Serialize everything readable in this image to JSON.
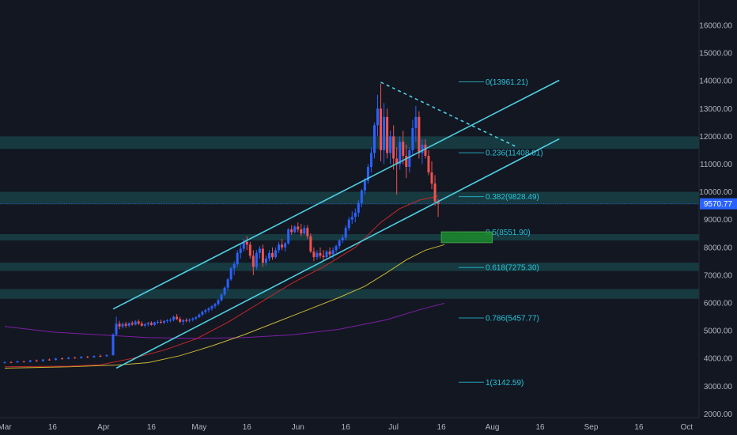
{
  "chart_data": {
    "type": "candlestick",
    "symbol_last_price": "9570.77",
    "y_axis": {
      "ylim": [
        1800,
        17200
      ],
      "ticks": [
        "2000.00",
        "3000.00",
        "4000.00",
        "5000.00",
        "6000.00",
        "7000.00",
        "8000.00",
        "9000.00",
        "10000.00",
        "11000.00",
        "12000.00",
        "13000.00",
        "14000.00",
        "15000.00",
        "16000.00"
      ],
      "tick_values": [
        2000,
        3000,
        4000,
        5000,
        6000,
        7000,
        8000,
        9000,
        10000,
        11000,
        12000,
        13000,
        14000,
        15000,
        16000
      ]
    },
    "x_axis": {
      "xlim": [
        0,
        218
      ],
      "ticks": [
        {
          "label": "Mar",
          "day": 0
        },
        {
          "label": "16",
          "day": 15
        },
        {
          "label": "Apr",
          "day": 31
        },
        {
          "label": "16",
          "day": 46
        },
        {
          "label": "May",
          "day": 61
        },
        {
          "label": "16",
          "day": 76
        },
        {
          "label": "Jun",
          "day": 92
        },
        {
          "label": "16",
          "day": 107
        },
        {
          "label": "Jul",
          "day": 122
        },
        {
          "label": "16",
          "day": 137
        },
        {
          "label": "Aug",
          "day": 153
        },
        {
          "label": "16",
          "day": 168
        },
        {
          "label": "Sep",
          "day": 184
        },
        {
          "label": "16",
          "day": 199
        },
        {
          "label": "Oct",
          "day": 214
        }
      ]
    },
    "fibonacci": [
      {
        "label": "0(13961.21)",
        "value": 13961.21
      },
      {
        "label": "0.236(11408.01)",
        "value": 11408.01
      },
      {
        "label": "0.382(9828.49)",
        "value": 9828.49
      },
      {
        "label": "0.5(8551.90)",
        "value": 8551.9
      },
      {
        "label": "0.618(7275.30)",
        "value": 7275.3
      },
      {
        "label": "0.786(5457.77)",
        "value": 5457.77
      },
      {
        "label": "1(3142.59)",
        "value": 3142.59
      }
    ],
    "zones": [
      {
        "low": 11550,
        "high": 12000
      },
      {
        "low": 9550,
        "high": 10000
      },
      {
        "low": 8250,
        "high": 8480
      },
      {
        "low": 7150,
        "high": 7450
      },
      {
        "low": 6150,
        "high": 6500
      }
    ],
    "target_box": {
      "x_start": 137,
      "x_end": 153,
      "low": 8170,
      "high": 8560
    },
    "channel_upper": [
      [
        34,
        5780
      ],
      [
        174,
        14020
      ]
    ],
    "channel_lower": [
      [
        35,
        3650
      ],
      [
        174,
        11910
      ]
    ],
    "downtrend": [
      [
        118,
        13950
      ],
      [
        161,
        11600
      ]
    ],
    "candles": [
      [
        0,
        3850,
        3890,
        3810,
        3870
      ],
      [
        2,
        3870,
        3900,
        3830,
        3860
      ],
      [
        4,
        3860,
        3920,
        3840,
        3900
      ],
      [
        6,
        3900,
        3910,
        3850,
        3880
      ],
      [
        8,
        3880,
        3950,
        3860,
        3930
      ],
      [
        10,
        3930,
        3960,
        3880,
        3900
      ],
      [
        12,
        3900,
        3980,
        3890,
        3960
      ],
      [
        14,
        3960,
        4000,
        3920,
        3940
      ],
      [
        16,
        3940,
        4020,
        3930,
        4000
      ],
      [
        18,
        4000,
        4030,
        3960,
        3980
      ],
      [
        20,
        3980,
        4050,
        3970,
        4030
      ],
      [
        22,
        4030,
        4060,
        3990,
        4010
      ],
      [
        24,
        4010,
        4080,
        4000,
        4060
      ],
      [
        26,
        4060,
        4090,
        4020,
        4040
      ],
      [
        28,
        4040,
        4110,
        4030,
        4090
      ],
      [
        30,
        4090,
        4140,
        4050,
        4080
      ],
      [
        32,
        4080,
        4150,
        4060,
        4120
      ],
      [
        34,
        4120,
        4900,
        4100,
        4860
      ],
      [
        35,
        4860,
        5500,
        4800,
        5250
      ],
      [
        36,
        5250,
        5350,
        5050,
        5150
      ],
      [
        37,
        5150,
        5300,
        5080,
        5240
      ],
      [
        38,
        5240,
        5320,
        5100,
        5180
      ],
      [
        39,
        5180,
        5300,
        5120,
        5270
      ],
      [
        40,
        5270,
        5350,
        5180,
        5220
      ],
      [
        41,
        5220,
        5380,
        5190,
        5330
      ],
      [
        42,
        5330,
        5400,
        5200,
        5260
      ],
      [
        43,
        5260,
        5340,
        5150,
        5180
      ],
      [
        44,
        5180,
        5280,
        5120,
        5230
      ],
      [
        45,
        5230,
        5320,
        5160,
        5280
      ],
      [
        46,
        5280,
        5340,
        5180,
        5210
      ],
      [
        47,
        5210,
        5320,
        5170,
        5300
      ],
      [
        48,
        5300,
        5380,
        5240,
        5320
      ],
      [
        49,
        5320,
        5400,
        5250,
        5290
      ],
      [
        50,
        5290,
        5380,
        5230,
        5350
      ],
      [
        51,
        5350,
        5420,
        5280,
        5370
      ],
      [
        52,
        5370,
        5450,
        5300,
        5390
      ],
      [
        53,
        5390,
        5550,
        5330,
        5500
      ],
      [
        54,
        5500,
        5600,
        5380,
        5420
      ],
      [
        55,
        5420,
        5500,
        5280,
        5320
      ],
      [
        56,
        5320,
        5420,
        5200,
        5380
      ],
      [
        57,
        5380,
        5450,
        5300,
        5360
      ],
      [
        58,
        5360,
        5440,
        5290,
        5400
      ],
      [
        59,
        5400,
        5480,
        5330,
        5440
      ],
      [
        60,
        5440,
        5520,
        5380,
        5490
      ],
      [
        61,
        5490,
        5620,
        5450,
        5580
      ],
      [
        62,
        5580,
        5720,
        5520,
        5680
      ],
      [
        63,
        5680,
        5790,
        5600,
        5740
      ],
      [
        64,
        5740,
        5850,
        5650,
        5800
      ],
      [
        65,
        5800,
        5920,
        5720,
        5880
      ],
      [
        66,
        5880,
        6000,
        5800,
        5960
      ],
      [
        67,
        5960,
        6150,
        5900,
        6100
      ],
      [
        68,
        6100,
        6350,
        6050,
        6300
      ],
      [
        69,
        6300,
        6600,
        6250,
        6550
      ],
      [
        70,
        6550,
        6900,
        6450,
        6850
      ],
      [
        71,
        6850,
        7300,
        6800,
        7250
      ],
      [
        72,
        7250,
        7500,
        7000,
        7400
      ],
      [
        73,
        7400,
        7900,
        7300,
        7800
      ],
      [
        74,
        7800,
        8100,
        7600,
        7950
      ],
      [
        75,
        7950,
        8300,
        7850,
        8200
      ],
      [
        76,
        8200,
        8400,
        7900,
        8100
      ],
      [
        77,
        8100,
        8200,
        7600,
        7700
      ],
      [
        78,
        7700,
        7900,
        7000,
        7300
      ],
      [
        79,
        7300,
        7900,
        7200,
        7800
      ],
      [
        80,
        7800,
        8050,
        7600,
        7950
      ],
      [
        81,
        7950,
        8100,
        7300,
        7450
      ],
      [
        82,
        7450,
        7700,
        7350,
        7600
      ],
      [
        83,
        7600,
        7900,
        7500,
        7800
      ],
      [
        84,
        7800,
        8000,
        7550,
        7650
      ],
      [
        85,
        7650,
        8000,
        7600,
        7900
      ],
      [
        86,
        7900,
        8200,
        7800,
        8100
      ],
      [
        87,
        8100,
        8300,
        7900,
        8000
      ],
      [
        88,
        8000,
        8200,
        7850,
        8150
      ],
      [
        89,
        8150,
        8700,
        8100,
        8650
      ],
      [
        90,
        8650,
        8800,
        8450,
        8550
      ],
      [
        91,
        8550,
        8800,
        8500,
        8750
      ],
      [
        92,
        8750,
        8900,
        8550,
        8650
      ],
      [
        93,
        8650,
        8850,
        8400,
        8500
      ],
      [
        94,
        8500,
        8800,
        8450,
        8700
      ],
      [
        95,
        8700,
        8800,
        8300,
        8400
      ],
      [
        96,
        8400,
        8500,
        7800,
        7850
      ],
      [
        97,
        7850,
        8000,
        7500,
        7650
      ],
      [
        98,
        7650,
        7900,
        7550,
        7800
      ],
      [
        99,
        7800,
        8000,
        7600,
        7700
      ],
      [
        100,
        7700,
        7900,
        7500,
        7650
      ],
      [
        101,
        7650,
        7900,
        7580,
        7850
      ],
      [
        102,
        7850,
        8000,
        7650,
        7750
      ],
      [
        103,
        7750,
        8000,
        7600,
        7900
      ],
      [
        104,
        7900,
        8100,
        7800,
        8050
      ],
      [
        105,
        8050,
        8300,
        7950,
        8250
      ],
      [
        106,
        8250,
        8450,
        8150,
        8350
      ],
      [
        107,
        8350,
        8800,
        8250,
        8700
      ],
      [
        108,
        8700,
        9100,
        8600,
        9000
      ],
      [
        109,
        9000,
        9300,
        8850,
        9100
      ],
      [
        110,
        9100,
        9400,
        8900,
        9250
      ],
      [
        111,
        9250,
        9700,
        9100,
        9600
      ],
      [
        112,
        9600,
        10100,
        9450,
        10050
      ],
      [
        113,
        10050,
        10500,
        9900,
        10400
      ],
      [
        114,
        10400,
        11000,
        10300,
        10900
      ],
      [
        115,
        10900,
        11600,
        10700,
        11400
      ],
      [
        116,
        11400,
        12500,
        11200,
        12400
      ],
      [
        117,
        12400,
        13500,
        12000,
        13000
      ],
      [
        118,
        13000,
        13900,
        11100,
        11500
      ],
      [
        119,
        11500,
        13200,
        11000,
        12700
      ],
      [
        120,
        12700,
        13000,
        11200,
        11400
      ],
      [
        121,
        11400,
        12200,
        11000,
        12000
      ],
      [
        122,
        12000,
        12400,
        10800,
        11200
      ],
      [
        123,
        11200,
        11600,
        9900,
        11000
      ],
      [
        124,
        11000,
        12000,
        10800,
        11800
      ],
      [
        125,
        11800,
        12200,
        11000,
        11300
      ],
      [
        126,
        11300,
        11700,
        10500,
        10900
      ],
      [
        127,
        10900,
        11600,
        10700,
        11500
      ],
      [
        128,
        11500,
        12600,
        11300,
        12300
      ],
      [
        129,
        12300,
        13100,
        11800,
        12700
      ],
      [
        130,
        12700,
        12900,
        11200,
        11400
      ],
      [
        131,
        11400,
        11900,
        11000,
        11700
      ],
      [
        132,
        11700,
        11900,
        11200,
        11300
      ],
      [
        133,
        11300,
        11500,
        10600,
        10700
      ],
      [
        134,
        10700,
        11100,
        10100,
        10300
      ],
      [
        135,
        10300,
        10600,
        9500,
        9650
      ],
      [
        136,
        9650,
        9750,
        9100,
        9570
      ]
    ],
    "ma_red": [
      [
        0,
        3700
      ],
      [
        20,
        3720
      ],
      [
        30,
        3770
      ],
      [
        40,
        4000
      ],
      [
        50,
        4300
      ],
      [
        60,
        4700
      ],
      [
        70,
        5300
      ],
      [
        80,
        6000
      ],
      [
        90,
        6700
      ],
      [
        100,
        7300
      ],
      [
        110,
        8000
      ],
      [
        118,
        8900
      ],
      [
        124,
        9400
      ],
      [
        130,
        9700
      ],
      [
        136,
        9850
      ]
    ],
    "ma_yellow": [
      [
        0,
        3650
      ],
      [
        20,
        3700
      ],
      [
        35,
        3760
      ],
      [
        45,
        3850
      ],
      [
        55,
        4100
      ],
      [
        65,
        4450
      ],
      [
        75,
        4850
      ],
      [
        85,
        5300
      ],
      [
        95,
        5750
      ],
      [
        105,
        6200
      ],
      [
        113,
        6600
      ],
      [
        120,
        7100
      ],
      [
        126,
        7550
      ],
      [
        132,
        7900
      ],
      [
        138,
        8100
      ]
    ],
    "ma_purple": [
      [
        0,
        5150
      ],
      [
        15,
        4950
      ],
      [
        30,
        4850
      ],
      [
        45,
        4750
      ],
      [
        60,
        4720
      ],
      [
        75,
        4750
      ],
      [
        90,
        4850
      ],
      [
        105,
        5050
      ],
      [
        120,
        5400
      ],
      [
        130,
        5750
      ],
      [
        138,
        5990
      ]
    ]
  }
}
